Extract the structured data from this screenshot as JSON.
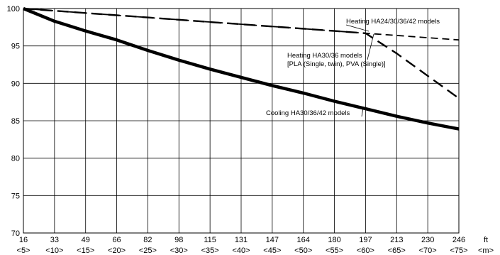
{
  "chart_data": {
    "type": "line",
    "x_ticks": [
      "16",
      "33",
      "49",
      "66",
      "82",
      "98",
      "115",
      "131",
      "147",
      "164",
      "180",
      "197",
      "213",
      "230",
      "246"
    ],
    "x_unit": "ft",
    "x_ticks_metric": [
      "<5>",
      "<10>",
      "<15>",
      "<20>",
      "<25>",
      "<30>",
      "<35>",
      "<40>",
      "<45>",
      "<50>",
      "<55>",
      "<60>",
      "<65>",
      "<70>",
      "<75>"
    ],
    "x_unit_metric": "<m>",
    "xlim": [
      16,
      246
    ],
    "y_ticks": [
      "70",
      "75",
      "80",
      "85",
      "90",
      "95",
      "100"
    ],
    "ylim": [
      70,
      100
    ],
    "grid": true,
    "series": [
      {
        "name": "Heating HA24/30/36/42 models",
        "style": "short-dash",
        "x": [
          16,
          33,
          49,
          66,
          82,
          98,
          115,
          131,
          147,
          164,
          180,
          197,
          213,
          230,
          246
        ],
        "y": [
          100,
          99.7,
          99.4,
          99.1,
          98.8,
          98.5,
          98.2,
          97.9,
          97.6,
          97.3,
          97.0,
          96.7,
          96.4,
          96.1,
          95.8
        ]
      },
      {
        "name": "Heating HA30/36 models [PLA (Single, twin), PVA (Single)]",
        "style": "long-dash",
        "x": [
          16,
          33,
          49,
          66,
          82,
          98,
          115,
          131,
          147,
          164,
          180,
          197,
          213,
          230,
          246
        ],
        "y": [
          100,
          99.7,
          99.4,
          99.1,
          98.8,
          98.5,
          98.2,
          97.9,
          97.6,
          97.3,
          97.0,
          96.7,
          94.0,
          91.0,
          88.0
        ]
      },
      {
        "name": "Cooling HA30/36/42 models",
        "style": "thick-solid",
        "x": [
          16,
          33,
          49,
          66,
          82,
          98,
          115,
          131,
          147,
          164,
          180,
          197,
          213,
          230,
          246
        ],
        "y": [
          100,
          98.3,
          97.0,
          95.8,
          94.4,
          93.1,
          91.9,
          90.8,
          89.7,
          88.7,
          87.6,
          86.6,
          85.6,
          84.7,
          83.9
        ]
      }
    ],
    "annotations": [
      {
        "text": "Heating HA24/30/36/42 models",
        "series": 0
      },
      {
        "text": "Heating HA30/36 models",
        "series": 1
      },
      {
        "text": "[PLA (Single, twin), PVA (Single)]",
        "series": 1
      },
      {
        "text": "Cooling HA30/36/42 models",
        "series": 2
      }
    ],
    "colors": {
      "line": "#000000",
      "grid": "#000000",
      "background": "#ffffff"
    }
  }
}
